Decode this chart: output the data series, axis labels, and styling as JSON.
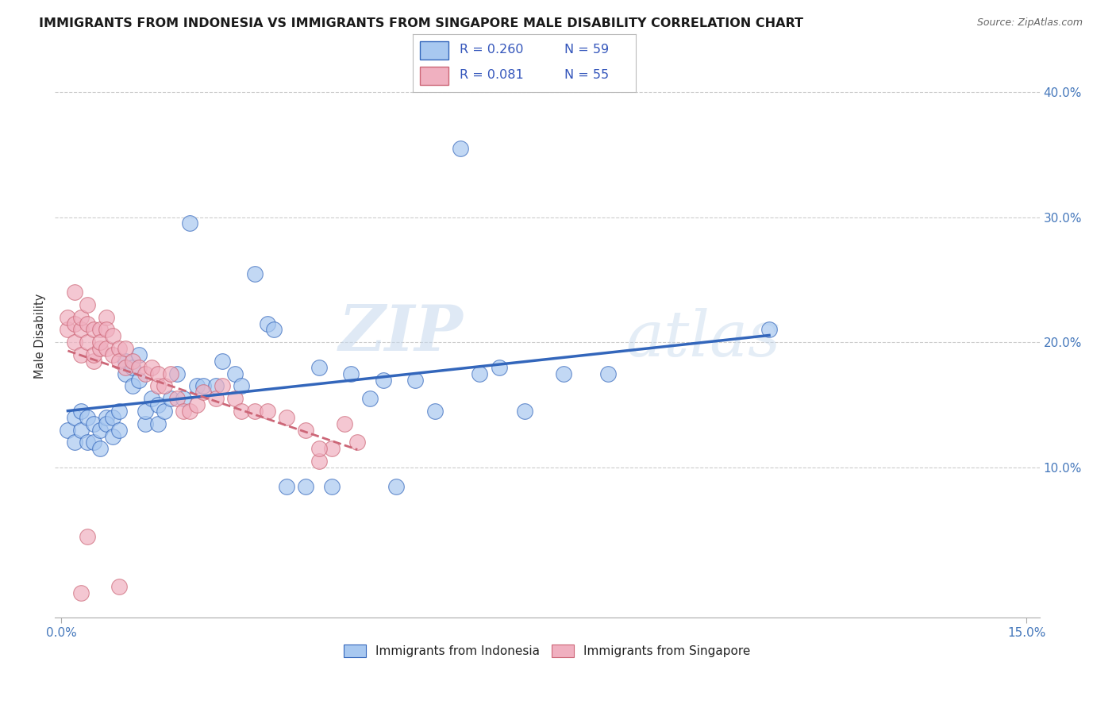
{
  "title": "IMMIGRANTS FROM INDONESIA VS IMMIGRANTS FROM SINGAPORE MALE DISABILITY CORRELATION CHART",
  "source": "Source: ZipAtlas.com",
  "ylabel": "Male Disability",
  "xlim": [
    -0.001,
    0.152
  ],
  "ylim": [
    -0.02,
    0.43
  ],
  "color_indonesia": "#a8c8f0",
  "color_singapore": "#f0b0c0",
  "trend_color_indonesia": "#3366bb",
  "trend_color_singapore": "#cc6677",
  "watermark_zip": "ZIP",
  "watermark_atlas": "atlas",
  "legend_r1": "R = 0.260",
  "legend_n1": "N = 59",
  "legend_r2": "R = 0.081",
  "legend_n2": "N = 55",
  "indonesia_x": [
    0.001,
    0.002,
    0.002,
    0.003,
    0.003,
    0.004,
    0.004,
    0.005,
    0.005,
    0.006,
    0.006,
    0.007,
    0.007,
    0.008,
    0.008,
    0.009,
    0.009,
    0.01,
    0.01,
    0.011,
    0.011,
    0.012,
    0.012,
    0.013,
    0.013,
    0.014,
    0.015,
    0.015,
    0.016,
    0.017,
    0.018,
    0.019,
    0.02,
    0.021,
    0.022,
    0.024,
    0.025,
    0.027,
    0.028,
    0.03,
    0.032,
    0.033,
    0.035,
    0.038,
    0.04,
    0.042,
    0.045,
    0.048,
    0.05,
    0.052,
    0.055,
    0.058,
    0.062,
    0.065,
    0.068,
    0.072,
    0.078,
    0.085,
    0.11
  ],
  "indonesia_y": [
    0.13,
    0.14,
    0.12,
    0.145,
    0.13,
    0.12,
    0.14,
    0.135,
    0.12,
    0.13,
    0.115,
    0.14,
    0.135,
    0.125,
    0.14,
    0.13,
    0.145,
    0.185,
    0.175,
    0.18,
    0.165,
    0.17,
    0.19,
    0.135,
    0.145,
    0.155,
    0.15,
    0.135,
    0.145,
    0.155,
    0.175,
    0.155,
    0.295,
    0.165,
    0.165,
    0.165,
    0.185,
    0.175,
    0.165,
    0.255,
    0.215,
    0.21,
    0.085,
    0.085,
    0.18,
    0.085,
    0.175,
    0.155,
    0.17,
    0.085,
    0.17,
    0.145,
    0.355,
    0.175,
    0.18,
    0.145,
    0.175,
    0.175,
    0.21
  ],
  "singapore_x": [
    0.001,
    0.001,
    0.002,
    0.002,
    0.002,
    0.003,
    0.003,
    0.003,
    0.004,
    0.004,
    0.004,
    0.005,
    0.005,
    0.005,
    0.006,
    0.006,
    0.006,
    0.007,
    0.007,
    0.007,
    0.008,
    0.008,
    0.009,
    0.009,
    0.01,
    0.01,
    0.011,
    0.012,
    0.013,
    0.014,
    0.015,
    0.015,
    0.016,
    0.017,
    0.018,
    0.019,
    0.02,
    0.021,
    0.022,
    0.024,
    0.025,
    0.027,
    0.028,
    0.03,
    0.032,
    0.035,
    0.038,
    0.04,
    0.042,
    0.044,
    0.046,
    0.04,
    0.009,
    0.004,
    0.003
  ],
  "singapore_y": [
    0.21,
    0.22,
    0.215,
    0.2,
    0.24,
    0.21,
    0.22,
    0.19,
    0.2,
    0.23,
    0.215,
    0.185,
    0.21,
    0.19,
    0.195,
    0.21,
    0.2,
    0.22,
    0.195,
    0.21,
    0.19,
    0.205,
    0.195,
    0.185,
    0.18,
    0.195,
    0.185,
    0.18,
    0.175,
    0.18,
    0.165,
    0.175,
    0.165,
    0.175,
    0.155,
    0.145,
    0.145,
    0.15,
    0.16,
    0.155,
    0.165,
    0.155,
    0.145,
    0.145,
    0.145,
    0.14,
    0.13,
    0.105,
    0.115,
    0.135,
    0.12,
    0.115,
    0.005,
    0.045,
    0.0
  ]
}
